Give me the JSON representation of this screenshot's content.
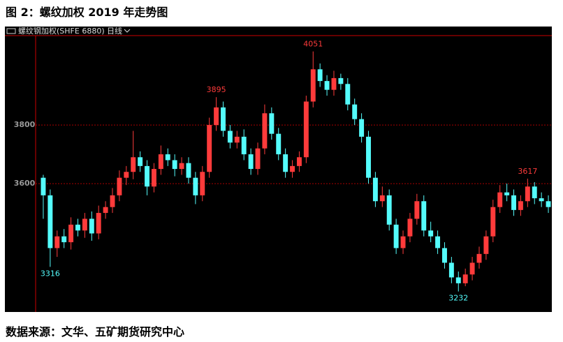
{
  "title": "图 2：螺纹加权 2019 年走势图",
  "source": "数据来源：文华、五矿期货研究中心",
  "chart_data": {
    "type": "candlestick",
    "instrument": "螺纹钢加权(SHFE 6880)",
    "period": "日线",
    "up_color": "#ff3b3b",
    "down_color": "#54fcfc",
    "ylim": [
      3162,
      4105
    ],
    "yticks": [
      3600,
      3800
    ],
    "grid": true,
    "open": [
      3620,
      3560,
      3380,
      3420,
      3400,
      3460,
      3440,
      3480,
      3430,
      3500,
      3520,
      3560,
      3620,
      3640,
      3690,
      3660,
      3590,
      3650,
      3700,
      3680,
      3650,
      3670,
      3620,
      3560,
      3640,
      3800,
      3860,
      3780,
      3740,
      3760,
      3700,
      3650,
      3720,
      3840,
      3770,
      3700,
      3640,
      3660,
      3690,
      3880,
      3990,
      3950,
      3920,
      3960,
      3940,
      3870,
      3820,
      3760,
      3620,
      3540,
      3560,
      3460,
      3380,
      3420,
      3480,
      3540,
      3440,
      3420,
      3380,
      3330,
      3280,
      3260,
      3290,
      3330,
      3360,
      3420,
      3520,
      3570,
      3560,
      3510,
      3540,
      3590,
      3550,
      3540
    ],
    "close": [
      3560,
      3380,
      3420,
      3400,
      3460,
      3440,
      3480,
      3430,
      3500,
      3520,
      3560,
      3620,
      3640,
      3690,
      3660,
      3590,
      3650,
      3700,
      3680,
      3650,
      3670,
      3620,
      3560,
      3640,
      3800,
      3860,
      3780,
      3740,
      3760,
      3700,
      3650,
      3720,
      3840,
      3770,
      3700,
      3640,
      3660,
      3690,
      3880,
      3990,
      3950,
      3920,
      3960,
      3940,
      3870,
      3820,
      3760,
      3620,
      3540,
      3560,
      3460,
      3380,
      3420,
      3480,
      3540,
      3440,
      3420,
      3380,
      3330,
      3280,
      3260,
      3290,
      3330,
      3360,
      3420,
      3520,
      3570,
      3560,
      3510,
      3540,
      3590,
      3550,
      3540,
      3520
    ],
    "high": [
      3630,
      3580,
      3440,
      3445,
      3485,
      3480,
      3500,
      3505,
      3525,
      3540,
      3585,
      3645,
      3660,
      3780,
      3710,
      3680,
      3670,
      3730,
      3720,
      3700,
      3690,
      3690,
      3640,
      3660,
      3825,
      3895,
      3880,
      3800,
      3780,
      3785,
      3720,
      3740,
      3870,
      3860,
      3790,
      3720,
      3680,
      3710,
      3900,
      4051,
      4010,
      3970,
      3985,
      3975,
      3960,
      3890,
      3840,
      3780,
      3640,
      3590,
      3580,
      3480,
      3440,
      3500,
      3565,
      3560,
      3470,
      3440,
      3400,
      3350,
      3300,
      3310,
      3350,
      3385,
      3440,
      3545,
      3595,
      3600,
      3580,
      3560,
      3617,
      3605,
      3570,
      3560
    ],
    "low": [
      3480,
      3316,
      3350,
      3380,
      3375,
      3420,
      3415,
      3405,
      3410,
      3480,
      3500,
      3540,
      3595,
      3615,
      3640,
      3560,
      3570,
      3630,
      3660,
      3625,
      3630,
      3600,
      3530,
      3540,
      3620,
      3780,
      3760,
      3720,
      3720,
      3680,
      3630,
      3630,
      3700,
      3750,
      3680,
      3620,
      3620,
      3640,
      3670,
      3860,
      3930,
      3900,
      3900,
      3920,
      3850,
      3800,
      3740,
      3600,
      3520,
      3520,
      3440,
      3360,
      3360,
      3400,
      3460,
      3420,
      3400,
      3360,
      3310,
      3260,
      3232,
      3250,
      3270,
      3310,
      3340,
      3400,
      3500,
      3540,
      3490,
      3490,
      3520,
      3530,
      3520,
      3500
    ],
    "extremes": [
      3316,
      3895,
      4051,
      3232,
      3617
    ]
  }
}
